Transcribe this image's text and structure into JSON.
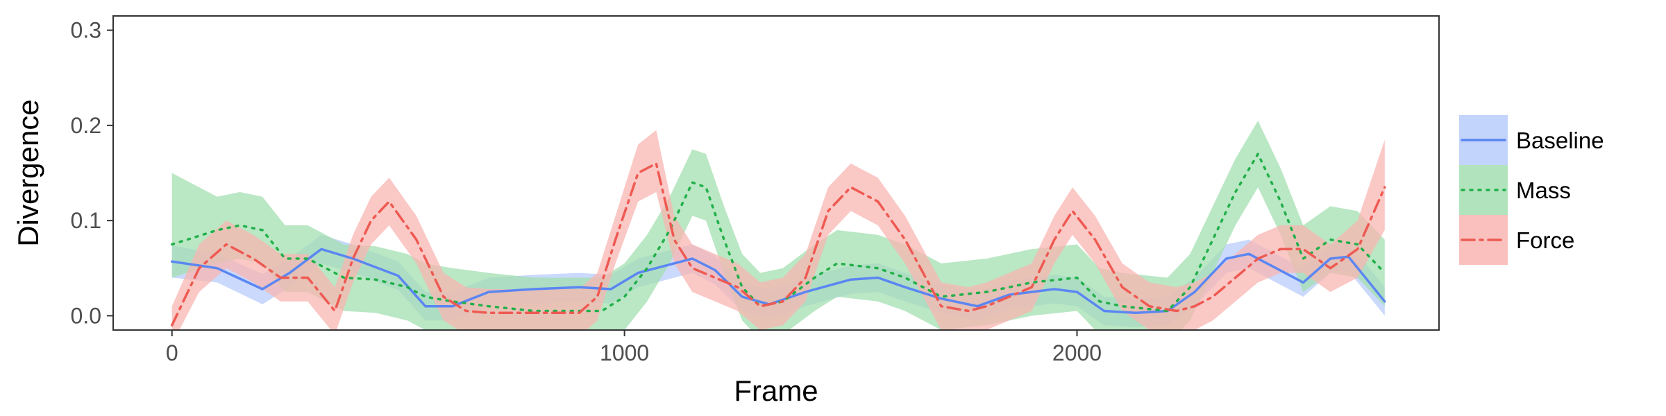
{
  "chart_data": {
    "type": "line",
    "title": "",
    "xlabel": "Frame",
    "ylabel": "Divergence",
    "xlim": [
      -130,
      2800
    ],
    "ylim": [
      -0.015,
      0.315
    ],
    "x_ticks": [
      0,
      1000,
      2000
    ],
    "x_tick_labels": [
      "0",
      "1000",
      "2000"
    ],
    "y_ticks": [
      0.0,
      0.1,
      0.2,
      0.3
    ],
    "y_tick_labels": [
      "0.0",
      "0.1",
      "0.2",
      "0.3"
    ],
    "grid": false,
    "legend_position": "right",
    "series": [
      {
        "name": "Baseline",
        "color": "#5b86f2",
        "band_color": "#b8ccfb",
        "dash": "solid",
        "x": [
          0,
          100,
          200,
          260,
          330,
          400,
          500,
          560,
          620,
          700,
          800,
          900,
          970,
          1030,
          1150,
          1200,
          1260,
          1320,
          1400,
          1500,
          1560,
          1620,
          1700,
          1780,
          1850,
          1950,
          2000,
          2060,
          2130,
          2200,
          2260,
          2330,
          2380,
          2420,
          2500,
          2560,
          2600,
          2680
        ],
        "y": [
          0.057,
          0.05,
          0.028,
          0.045,
          0.07,
          0.06,
          0.042,
          0.01,
          0.01,
          0.025,
          0.028,
          0.03,
          0.028,
          0.045,
          0.06,
          0.048,
          0.02,
          0.012,
          0.025,
          0.038,
          0.04,
          0.03,
          0.018,
          0.01,
          0.022,
          0.028,
          0.025,
          0.005,
          0.003,
          0.005,
          0.025,
          0.06,
          0.065,
          0.055,
          0.035,
          0.06,
          0.062,
          0.015
        ],
        "lower": [
          0.04,
          0.035,
          0.012,
          0.03,
          0.055,
          0.045,
          0.027,
          -0.005,
          -0.005,
          0.01,
          0.013,
          0.015,
          0.013,
          0.03,
          0.045,
          0.033,
          0.005,
          -0.003,
          0.01,
          0.023,
          0.025,
          0.015,
          0.003,
          -0.005,
          0.007,
          0.013,
          0.01,
          -0.01,
          -0.012,
          -0.01,
          0.01,
          0.045,
          0.05,
          0.04,
          0.02,
          0.045,
          0.047,
          0.0
        ],
        "upper": [
          0.074,
          0.065,
          0.044,
          0.06,
          0.085,
          0.075,
          0.057,
          0.025,
          0.025,
          0.04,
          0.043,
          0.045,
          0.043,
          0.06,
          0.075,
          0.063,
          0.035,
          0.027,
          0.04,
          0.053,
          0.055,
          0.045,
          0.033,
          0.025,
          0.037,
          0.043,
          0.04,
          0.02,
          0.018,
          0.02,
          0.04,
          0.075,
          0.08,
          0.07,
          0.05,
          0.075,
          0.077,
          0.03
        ]
      },
      {
        "name": "Mass",
        "color": "#22b04a",
        "band_color": "#a3dfb0",
        "dash": "dot",
        "x": [
          0,
          100,
          150,
          200,
          250,
          300,
          380,
          450,
          520,
          560,
          620,
          700,
          800,
          900,
          950,
          1000,
          1050,
          1100,
          1150,
          1180,
          1220,
          1260,
          1300,
          1350,
          1420,
          1470,
          1560,
          1620,
          1700,
          1800,
          1900,
          2000,
          2050,
          2100,
          2200,
          2250,
          2300,
          2350,
          2400,
          2450,
          2500,
          2560,
          2620,
          2680
        ],
        "y": [
          0.075,
          0.09,
          0.095,
          0.09,
          0.06,
          0.06,
          0.04,
          0.038,
          0.03,
          0.02,
          0.015,
          0.01,
          0.005,
          0.005,
          0.005,
          0.02,
          0.05,
          0.09,
          0.14,
          0.135,
          0.08,
          0.03,
          0.01,
          0.015,
          0.04,
          0.055,
          0.05,
          0.04,
          0.02,
          0.025,
          0.035,
          0.04,
          0.015,
          0.01,
          0.005,
          0.03,
          0.08,
          0.13,
          0.17,
          0.12,
          0.06,
          0.08,
          0.075,
          0.045
        ],
        "lower": [
          0.04,
          0.055,
          0.06,
          0.055,
          0.025,
          0.025,
          0.005,
          0.003,
          -0.005,
          -0.015,
          -0.02,
          -0.025,
          -0.03,
          -0.03,
          -0.03,
          -0.015,
          0.015,
          0.055,
          0.105,
          0.1,
          0.045,
          -0.005,
          -0.025,
          -0.02,
          0.005,
          0.02,
          0.015,
          0.005,
          -0.015,
          -0.01,
          0.0,
          0.005,
          -0.02,
          -0.025,
          -0.03,
          -0.005,
          0.045,
          0.095,
          0.135,
          0.085,
          0.025,
          0.045,
          0.04,
          0.01
        ],
        "upper": [
          0.15,
          0.125,
          0.13,
          0.125,
          0.095,
          0.095,
          0.075,
          0.073,
          0.065,
          0.055,
          0.05,
          0.045,
          0.04,
          0.04,
          0.04,
          0.055,
          0.085,
          0.125,
          0.175,
          0.17,
          0.115,
          0.065,
          0.045,
          0.05,
          0.075,
          0.09,
          0.085,
          0.075,
          0.055,
          0.06,
          0.07,
          0.075,
          0.05,
          0.045,
          0.04,
          0.065,
          0.115,
          0.165,
          0.205,
          0.155,
          0.095,
          0.115,
          0.11,
          0.08
        ]
      },
      {
        "name": "Force",
        "color": "#ee5a52",
        "band_color": "#f8b5b1",
        "dash": "dashdot",
        "x": [
          0,
          60,
          120,
          180,
          240,
          300,
          360,
          400,
          440,
          480,
          540,
          600,
          650,
          700,
          800,
          900,
          940,
          980,
          1030,
          1070,
          1110,
          1150,
          1200,
          1250,
          1300,
          1350,
          1400,
          1450,
          1500,
          1560,
          1620,
          1700,
          1760,
          1800,
          1850,
          1900,
          1950,
          1990,
          2040,
          2100,
          2160,
          2220,
          2260,
          2300,
          2350,
          2400,
          2450,
          2500,
          2560,
          2620,
          2680
        ],
        "y": [
          -0.01,
          0.05,
          0.075,
          0.06,
          0.04,
          0.04,
          0.005,
          0.06,
          0.1,
          0.12,
          0.08,
          0.02,
          0.005,
          0.003,
          0.003,
          0.003,
          0.02,
          0.08,
          0.15,
          0.16,
          0.08,
          0.05,
          0.04,
          0.03,
          0.01,
          0.015,
          0.04,
          0.11,
          0.135,
          0.12,
          0.08,
          0.01,
          0.005,
          0.01,
          0.02,
          0.03,
          0.08,
          0.11,
          0.08,
          0.03,
          0.01,
          0.005,
          0.01,
          0.02,
          0.04,
          0.06,
          0.07,
          0.07,
          0.05,
          0.07,
          0.135
        ],
        "lower": [
          -0.03,
          0.025,
          0.05,
          0.035,
          0.015,
          0.015,
          -0.02,
          0.035,
          0.075,
          0.095,
          0.055,
          -0.005,
          -0.02,
          -0.022,
          -0.022,
          -0.022,
          -0.005,
          0.055,
          0.12,
          0.13,
          0.055,
          0.025,
          0.015,
          0.005,
          -0.015,
          -0.01,
          0.015,
          0.085,
          0.11,
          0.095,
          0.055,
          -0.015,
          -0.02,
          -0.015,
          -0.005,
          0.005,
          0.055,
          0.085,
          0.055,
          0.005,
          -0.015,
          -0.02,
          -0.015,
          -0.005,
          0.015,
          0.035,
          0.045,
          0.045,
          0.025,
          0.04,
          0.09
        ],
        "upper": [
          0.01,
          0.075,
          0.1,
          0.085,
          0.065,
          0.065,
          0.03,
          0.085,
          0.125,
          0.145,
          0.105,
          0.045,
          0.03,
          0.028,
          0.028,
          0.028,
          0.045,
          0.105,
          0.18,
          0.195,
          0.105,
          0.075,
          0.065,
          0.055,
          0.035,
          0.04,
          0.065,
          0.135,
          0.16,
          0.145,
          0.105,
          0.035,
          0.03,
          0.035,
          0.045,
          0.055,
          0.105,
          0.135,
          0.105,
          0.055,
          0.035,
          0.03,
          0.035,
          0.045,
          0.065,
          0.085,
          0.095,
          0.095,
          0.075,
          0.1,
          0.185
        ]
      }
    ]
  }
}
